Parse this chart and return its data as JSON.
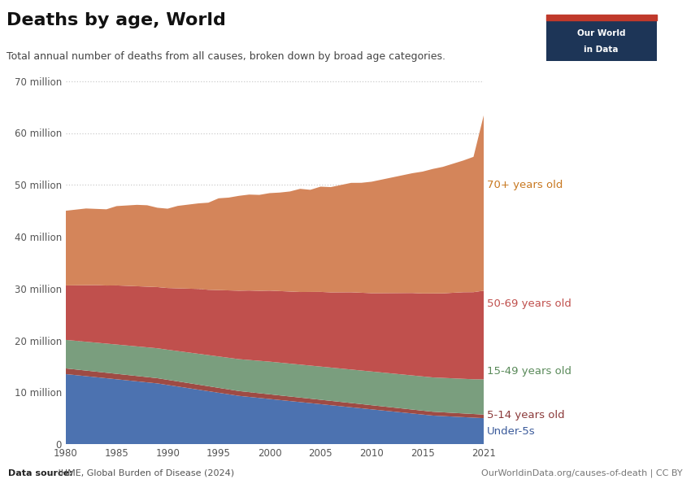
{
  "title": "Deaths by age, World",
  "subtitle": "Total annual number of deaths from all causes, broken down by broad age categories.",
  "datasource_bold": "Data source:",
  "datasource_rest": " IHME, Global Burden of Disease (2024)",
  "url": "OurWorldinData.org/causes-of-death | CC BY",
  "years": [
    1980,
    1981,
    1982,
    1983,
    1984,
    1985,
    1986,
    1987,
    1988,
    1989,
    1990,
    1991,
    1992,
    1993,
    1994,
    1995,
    1996,
    1997,
    1998,
    1999,
    2000,
    2001,
    2002,
    2003,
    2004,
    2005,
    2006,
    2007,
    2008,
    2009,
    2010,
    2011,
    2012,
    2013,
    2014,
    2015,
    2016,
    2017,
    2018,
    2019,
    2020,
    2021
  ],
  "series": {
    "Under-5s": {
      "color": "#4C72B0",
      "label": "Under-5s",
      "values": [
        13500000,
        13300000,
        13100000,
        12900000,
        12700000,
        12500000,
        12300000,
        12100000,
        11900000,
        11700000,
        11400000,
        11100000,
        10800000,
        10500000,
        10200000,
        9900000,
        9600000,
        9300000,
        9100000,
        8900000,
        8700000,
        8500000,
        8300000,
        8100000,
        7900000,
        7700000,
        7500000,
        7300000,
        7100000,
        6900000,
        6700000,
        6500000,
        6300000,
        6100000,
        5900000,
        5700000,
        5500000,
        5400000,
        5300000,
        5200000,
        5100000,
        5000000
      ]
    },
    "5-14 years old": {
      "color": "#9E4B44",
      "label": "5-14 years old",
      "values": [
        1100000,
        1090000,
        1080000,
        1070000,
        1060000,
        1050000,
        1040000,
        1030000,
        1020000,
        1010000,
        1000000,
        990000,
        980000,
        970000,
        960000,
        950000,
        940000,
        930000,
        920000,
        910000,
        900000,
        890000,
        880000,
        870000,
        860000,
        850000,
        840000,
        830000,
        820000,
        810000,
        800000,
        790000,
        780000,
        770000,
        760000,
        750000,
        740000,
        730000,
        720000,
        710000,
        700000,
        690000
      ]
    },
    "15-49 years old": {
      "color": "#7A9E7E",
      "label": "15-49 years old",
      "values": [
        5500000,
        5530000,
        5560000,
        5590000,
        5620000,
        5650000,
        5680000,
        5710000,
        5740000,
        5770000,
        5800000,
        5850000,
        5900000,
        5950000,
        6000000,
        6050000,
        6100000,
        6150000,
        6200000,
        6250000,
        6300000,
        6320000,
        6340000,
        6360000,
        6380000,
        6400000,
        6420000,
        6440000,
        6460000,
        6480000,
        6500000,
        6520000,
        6540000,
        6560000,
        6580000,
        6600000,
        6620000,
        6640000,
        6660000,
        6680000,
        6700000,
        6800000
      ]
    },
    "50-69 years old": {
      "color": "#C0504D",
      "label": "50-69 years old",
      "values": [
        10500000,
        10700000,
        10900000,
        11100000,
        11200000,
        11400000,
        11500000,
        11600000,
        11700000,
        11800000,
        11900000,
        12100000,
        12300000,
        12500000,
        12600000,
        12800000,
        13000000,
        13200000,
        13400000,
        13500000,
        13700000,
        13800000,
        13900000,
        14000000,
        14200000,
        14400000,
        14500000,
        14700000,
        14900000,
        15000000,
        15100000,
        15300000,
        15500000,
        15700000,
        15900000,
        16000000,
        16200000,
        16300000,
        16500000,
        16700000,
        16800000,
        17100000
      ]
    },
    "70+ years old": {
      "color": "#D4855A",
      "label": "70+ years old",
      "values": [
        14400000,
        14600000,
        14800000,
        14700000,
        14700000,
        15300000,
        15500000,
        15700000,
        15700000,
        15300000,
        15300000,
        15900000,
        16200000,
        16500000,
        16800000,
        17700000,
        17900000,
        18300000,
        18500000,
        18500000,
        18800000,
        19000000,
        19300000,
        19900000,
        19700000,
        20300000,
        20300000,
        20700000,
        21100000,
        21200000,
        21500000,
        21900000,
        22300000,
        22700000,
        23100000,
        23500000,
        24000000,
        24400000,
        24900000,
        25400000,
        26100000,
        33800000
      ]
    }
  },
  "ylim": [
    0,
    72000000
  ],
  "yticks": [
    0,
    10000000,
    20000000,
    30000000,
    40000000,
    50000000,
    60000000,
    70000000
  ],
  "ytick_labels": [
    "0",
    "10 million",
    "20 million",
    "30 million",
    "40 million",
    "50 million",
    "60 million",
    "70 million"
  ],
  "xticks": [
    1980,
    1985,
    1990,
    1995,
    2000,
    2005,
    2010,
    2015,
    2021
  ],
  "background_color": "#ffffff",
  "plot_bg_color": "#ffffff",
  "grid_color": "#cccccc",
  "label_annotations": [
    {
      "text": "70+ years old",
      "color": "#C87820",
      "fontsize": 9.5
    },
    {
      "text": "50-69 years old",
      "color": "#C0504D",
      "fontsize": 9.5
    },
    {
      "text": "15-49 years old",
      "color": "#5A8A5A",
      "fontsize": 9.5
    },
    {
      "text": "5-14 years old",
      "color": "#8B3A3A",
      "fontsize": 9.5
    },
    {
      "text": "Under-5s",
      "color": "#3A5A9A",
      "fontsize": 9.5
    }
  ]
}
